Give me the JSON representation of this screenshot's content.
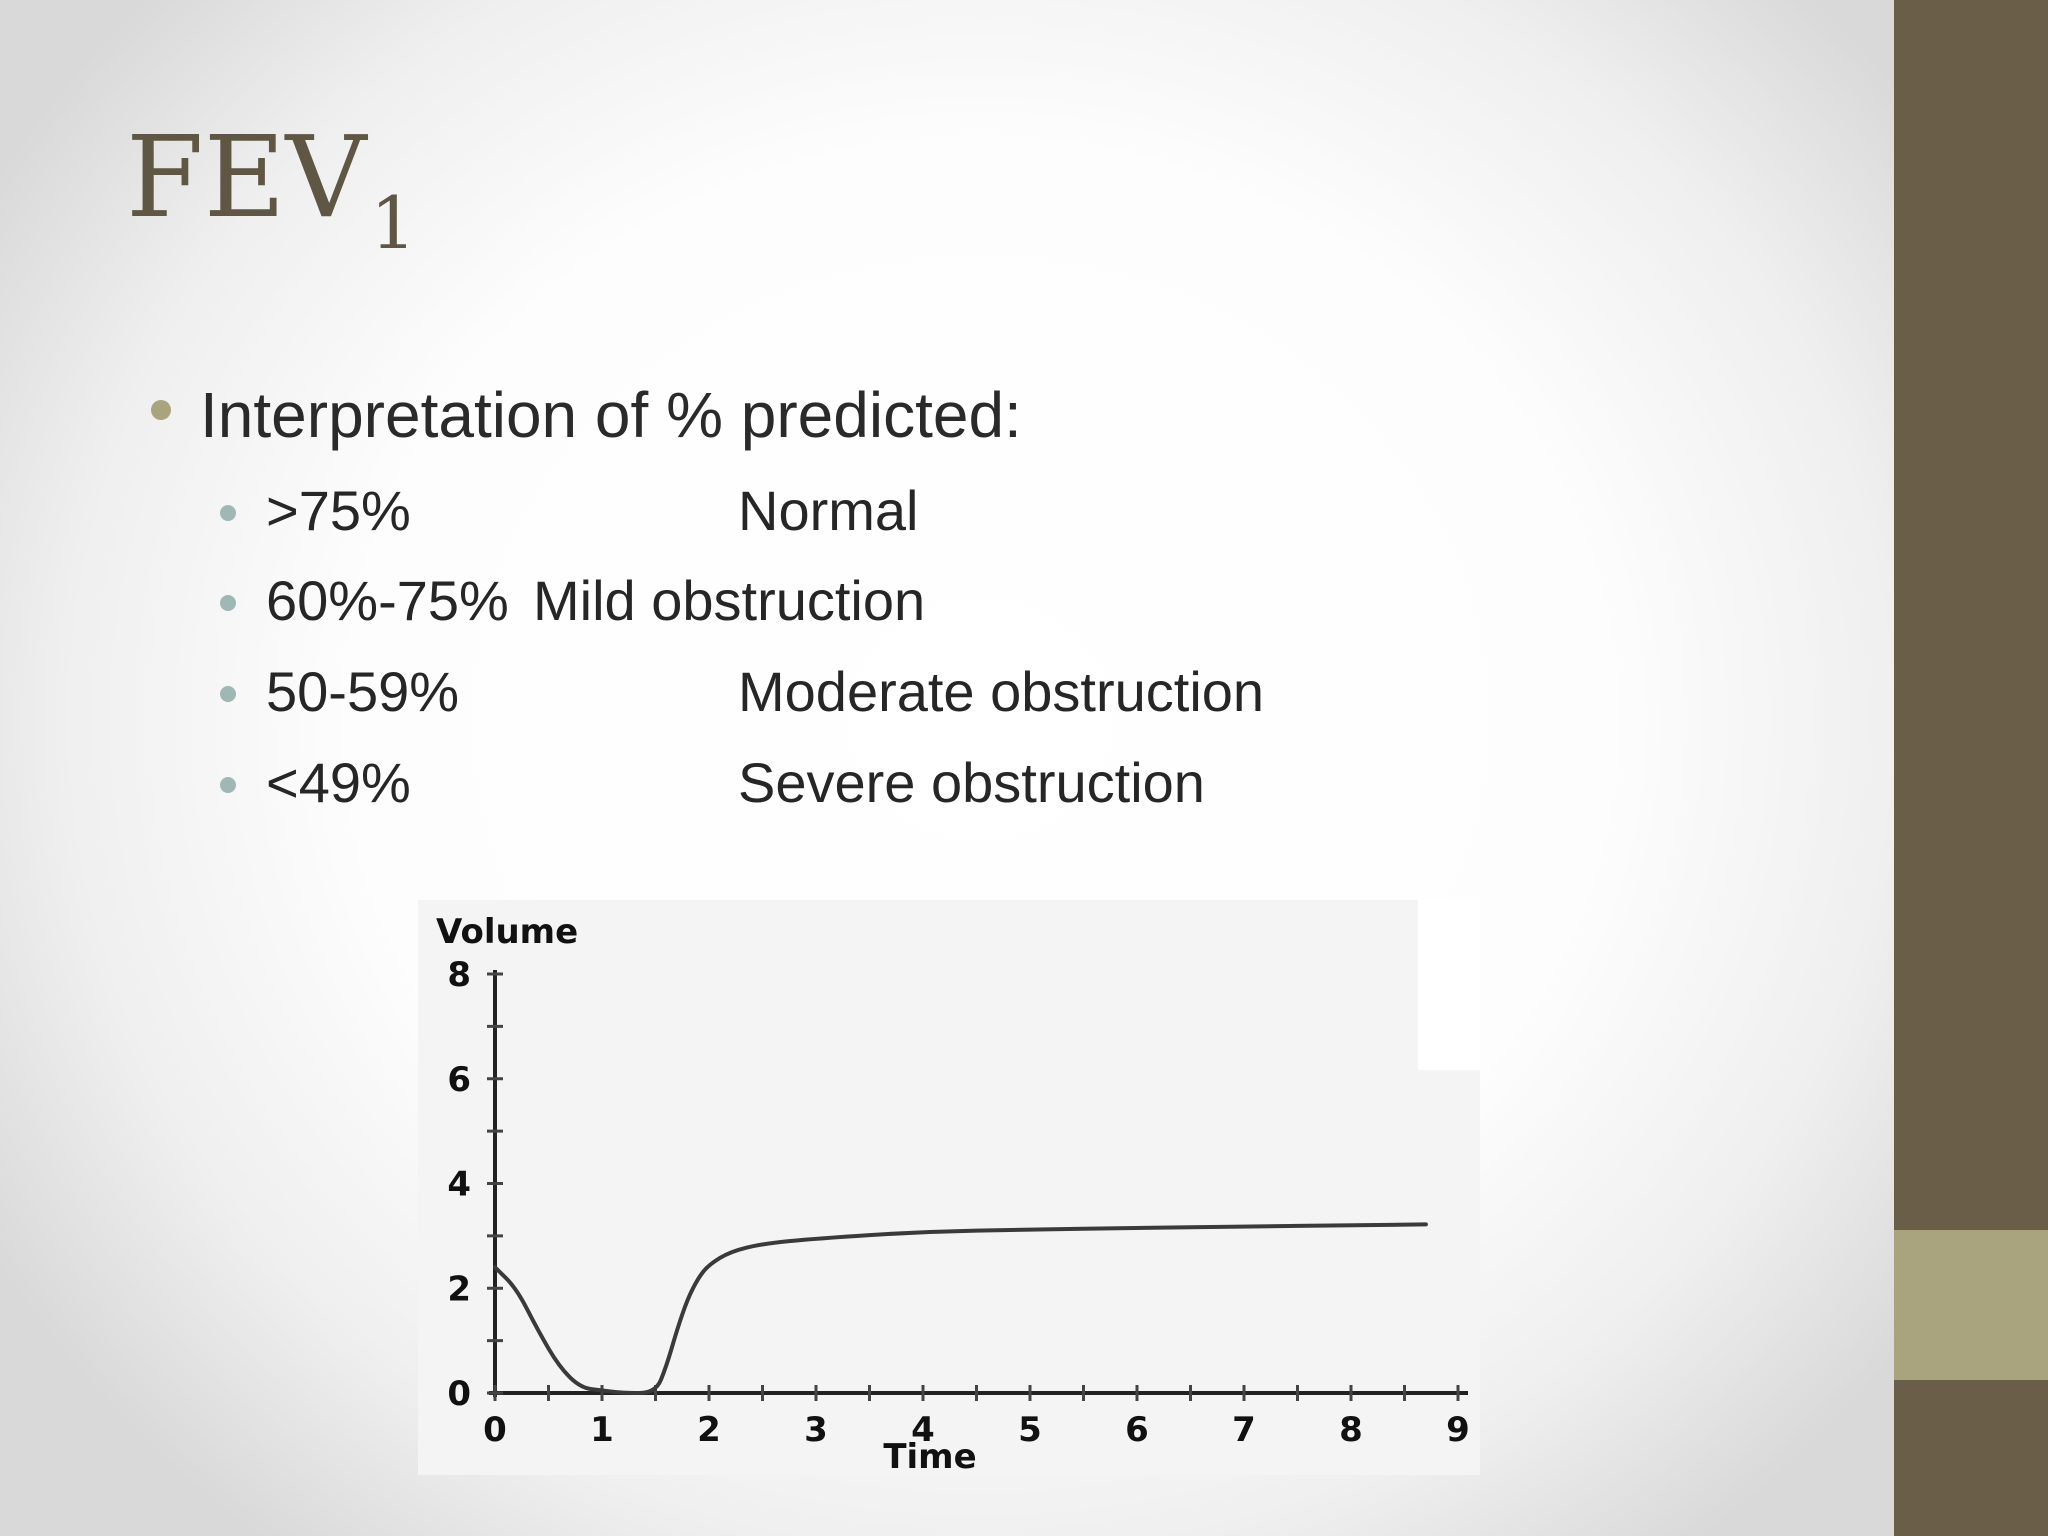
{
  "slide": {
    "title_main": "FEV",
    "title_sub": "1",
    "bullet": "Interpretation of % predicted:",
    "rows": [
      {
        "range": ">75%",
        "desc": "Normal"
      },
      {
        "range": "60%-75%",
        "desc": "Mild obstruction"
      },
      {
        "range": "50-59%",
        "desc": "Moderate obstruction"
      },
      {
        "range": "<49%",
        "desc": "Severe obstruction"
      }
    ],
    "colors": {
      "sidebar": "#6a5e48",
      "sidebar_accent": "#aaa47e",
      "title": "#5f5644",
      "bullet_level1": "#aaa47e",
      "bullet_level2": "#9fb7b5"
    }
  },
  "chart_data": {
    "type": "line",
    "xlabel": "Time",
    "ylabel": "Volume",
    "xlim": [
      0,
      9
    ],
    "ylim": [
      0,
      8
    ],
    "x_ticks": [
      "0",
      "1",
      "2",
      "3",
      "4",
      "5",
      "6",
      "7",
      "8",
      "9"
    ],
    "y_ticks": [
      "0",
      "2",
      "4",
      "6",
      "8"
    ],
    "grid": false,
    "series": [
      {
        "points": [
          [
            0,
            2.4
          ],
          [
            0.2,
            2.0
          ],
          [
            0.4,
            1.2
          ],
          [
            0.6,
            0.5
          ],
          [
            0.8,
            0.1
          ],
          [
            1.0,
            0.05
          ],
          [
            1.2,
            0.0
          ],
          [
            1.5,
            0.0
          ],
          [
            1.6,
            0.5
          ],
          [
            1.7,
            1.2
          ],
          [
            1.8,
            1.8
          ],
          [
            1.9,
            2.2
          ],
          [
            2.0,
            2.45
          ],
          [
            2.2,
            2.7
          ],
          [
            2.5,
            2.85
          ],
          [
            3.0,
            2.95
          ],
          [
            4.0,
            3.08
          ],
          [
            5.0,
            3.12
          ],
          [
            6.0,
            3.15
          ],
          [
            7.0,
            3.18
          ],
          [
            8.0,
            3.2
          ],
          [
            8.7,
            3.22
          ]
        ]
      }
    ]
  }
}
